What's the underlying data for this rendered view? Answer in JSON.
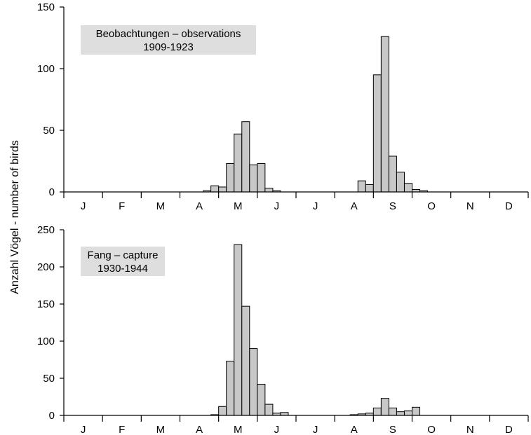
{
  "ylabel": "Anzahl Vögel - number of birds",
  "months": [
    "J",
    "F",
    "M",
    "A",
    "M",
    "J",
    "J",
    "A",
    "S",
    "O",
    "N",
    "D"
  ],
  "chart_data": [
    {
      "type": "bar",
      "legend": {
        "line1": "Beobachtungen – observations",
        "line2": "1909-1923"
      },
      "ylim": [
        0,
        150
      ],
      "yticks": [
        0,
        50,
        100,
        150
      ],
      "x": [
        3.7,
        3.9,
        4.1,
        4.3,
        4.5,
        4.7,
        4.9,
        5.1,
        5.3,
        5.5,
        7.7,
        7.9,
        8.1,
        8.3,
        8.5,
        8.7,
        8.9,
        9.1,
        9.3
      ],
      "values": [
        1,
        5,
        4,
        23,
        47,
        57,
        22,
        23,
        3,
        1,
        9,
        6,
        95,
        126,
        29,
        16,
        7,
        2,
        1
      ]
    },
    {
      "type": "bar",
      "legend": {
        "line1": "Fang – capture",
        "line2": "1930-1944"
      },
      "ylim": [
        0,
        250
      ],
      "yticks": [
        0,
        50,
        100,
        150,
        200,
        250
      ],
      "x": [
        3.9,
        4.1,
        4.3,
        4.5,
        4.7,
        4.9,
        5.1,
        5.3,
        5.5,
        5.7,
        7.5,
        7.7,
        7.9,
        8.1,
        8.3,
        8.5,
        8.7,
        8.9,
        9.1
      ],
      "values": [
        1,
        12,
        73,
        230,
        147,
        90,
        42,
        15,
        3,
        4,
        1,
        2,
        3,
        10,
        23,
        10,
        5,
        6,
        11
      ]
    }
  ]
}
